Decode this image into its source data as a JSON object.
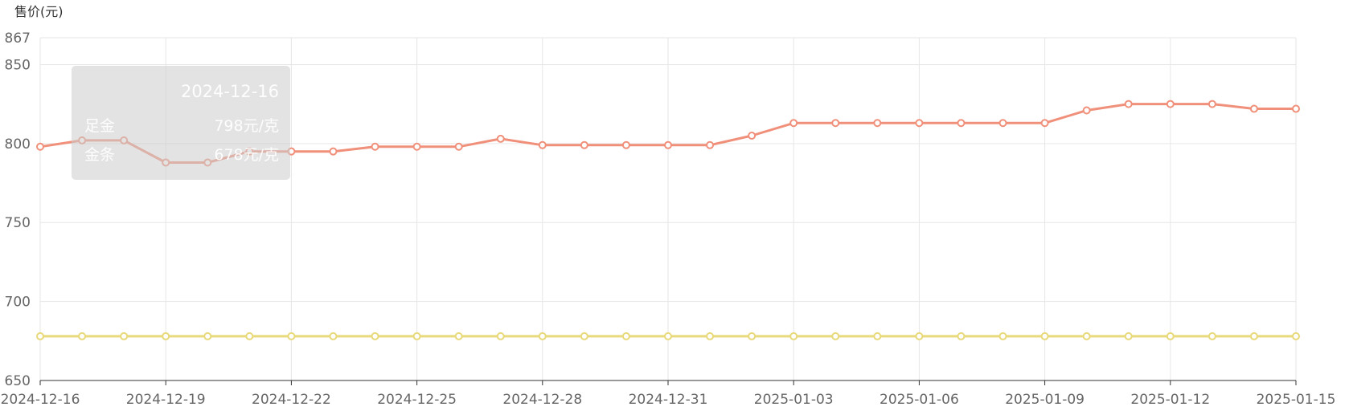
{
  "chart_data": {
    "type": "line",
    "ylabel": "售价(元)",
    "ylim": [
      650,
      867
    ],
    "yticks": [
      650,
      700,
      750,
      800,
      850,
      867
    ],
    "x_start": "2024-12-16",
    "x_end": "2025-01-15",
    "xticks": [
      "2024-12-16",
      "2024-12-19",
      "2024-12-22",
      "2024-12-25",
      "2024-12-28",
      "2024-12-31",
      "2025-01-03",
      "2025-01-06",
      "2025-01-09",
      "2025-01-12",
      "2025-01-15"
    ],
    "x": [
      "2024-12-16",
      "2024-12-17",
      "2024-12-18",
      "2024-12-19",
      "2024-12-20",
      "2024-12-21",
      "2024-12-22",
      "2024-12-23",
      "2024-12-24",
      "2024-12-25",
      "2024-12-26",
      "2024-12-27",
      "2024-12-28",
      "2024-12-29",
      "2024-12-30",
      "2024-12-31",
      "2025-01-01",
      "2025-01-02",
      "2025-01-03",
      "2025-01-04",
      "2025-01-05",
      "2025-01-06",
      "2025-01-07",
      "2025-01-08",
      "2025-01-09",
      "2025-01-10",
      "2025-01-11",
      "2025-01-12",
      "2025-01-13",
      "2025-01-14",
      "2025-01-15"
    ],
    "grid": true,
    "series": [
      {
        "name": "足金",
        "color": "#f0907a",
        "values": [
          798,
          802,
          802,
          788,
          788,
          795,
          795,
          795,
          798,
          798,
          798,
          803,
          799,
          799,
          799,
          799,
          799,
          805,
          813,
          813,
          813,
          813,
          813,
          813,
          813,
          821,
          825,
          825,
          825,
          822,
          822
        ]
      },
      {
        "name": "金条",
        "color": "#e8d97a",
        "values": [
          678,
          678,
          678,
          678,
          678,
          678,
          678,
          678,
          678,
          678,
          678,
          678,
          678,
          678,
          678,
          678,
          678,
          678,
          678,
          678,
          678,
          678,
          678,
          678,
          678,
          678,
          678,
          678,
          678,
          678,
          678
        ]
      }
    ],
    "tooltip": {
      "date": "2024-12-16",
      "rows": [
        {
          "name": "足金",
          "value": "798元/克"
        },
        {
          "name": "金条",
          "value": "678元/克"
        }
      ]
    }
  }
}
